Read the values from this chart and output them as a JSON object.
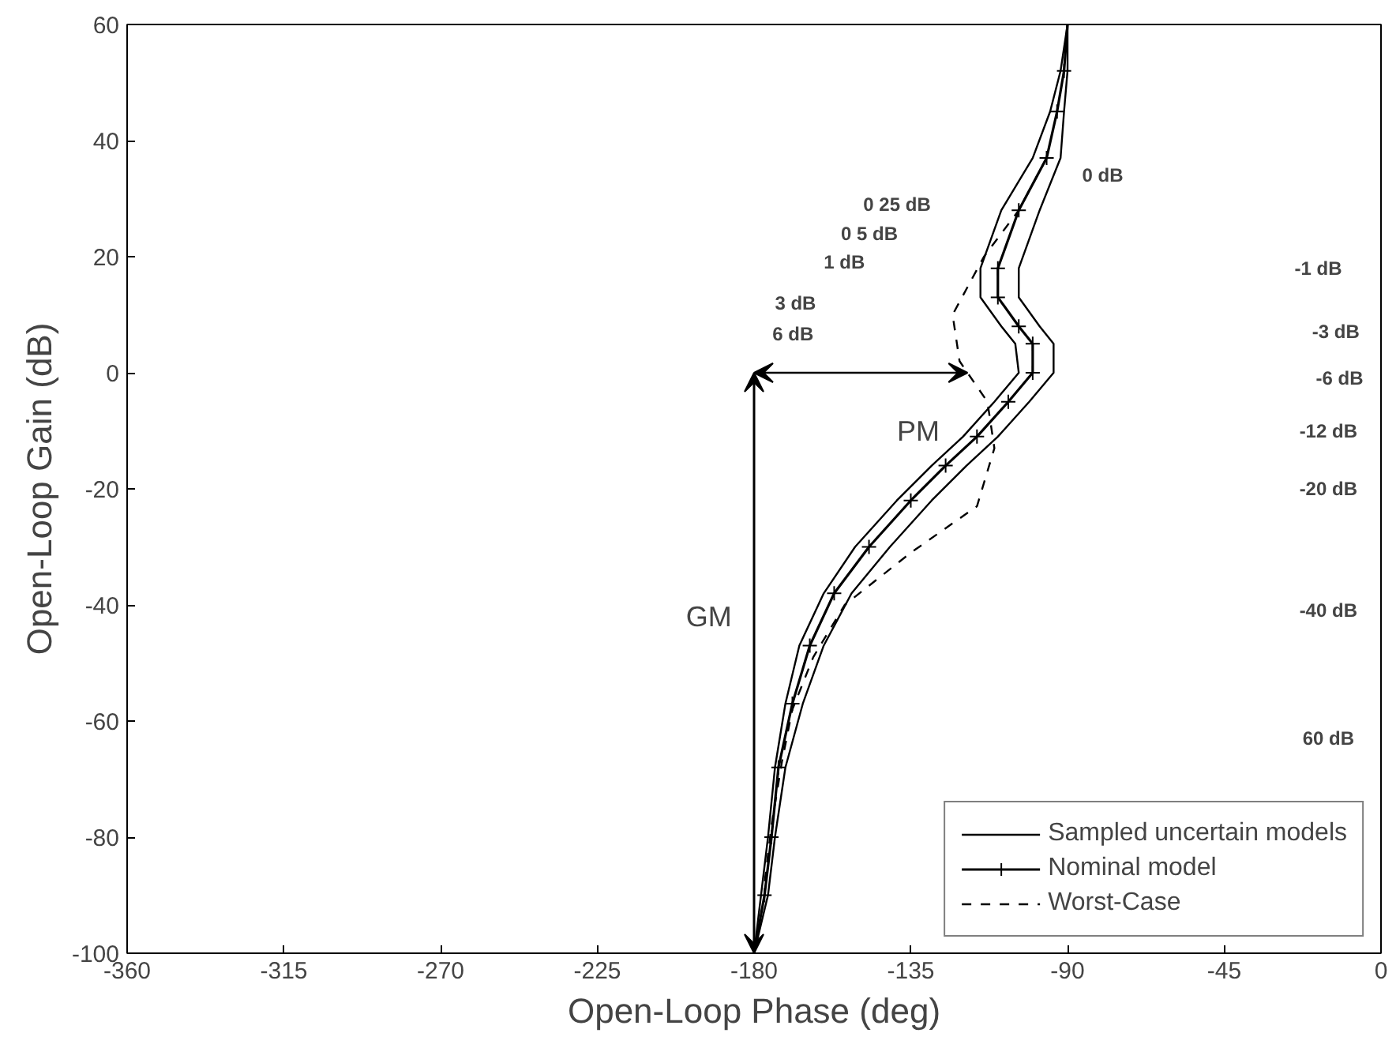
{
  "chart_data": {
    "type": "line",
    "xlabel": "Open-Loop Phase (deg)",
    "ylabel": "Open-Loop Gain (dB)",
    "xlim": [
      -360,
      0
    ],
    "ylim": [
      -100,
      60
    ],
    "xticks": [
      -360,
      -315,
      -270,
      -225,
      -180,
      -135,
      -90,
      -45,
      0
    ],
    "yticks": [
      -100,
      -80,
      -60,
      -40,
      -20,
      0,
      20,
      40,
      60
    ],
    "grid": false,
    "legend": "bottom right",
    "series": [
      {
        "name": "Sampled uncertain models",
        "color": "#000000",
        "line_style": "solid",
        "marker": "none",
        "x": [
          -90,
          -90,
          -91,
          -92,
          -98,
          -104,
          -104,
          -98,
          -94,
          -94,
          -101,
          -110,
          -119,
          -129,
          -141,
          -152,
          -160,
          -166,
          -171,
          -174,
          -176,
          -180
        ],
        "values": [
          60,
          52,
          45,
          37,
          28,
          18,
          13,
          8,
          5,
          0,
          -5,
          -11,
          -16,
          -22,
          -30,
          -38,
          -47,
          -57,
          -68,
          -80,
          -90,
          -100
        ]
      },
      {
        "color": "#000000",
        "line_style": "solid",
        "marker": "none",
        "x": [
          -90,
          -92,
          -95,
          -100,
          -109,
          -115,
          -115,
          -109,
          -105,
          -104,
          -111,
          -120,
          -129,
          -139,
          -151,
          -160,
          -167,
          -171,
          -174,
          -176,
          -178,
          -180
        ],
        "values": [
          60,
          52,
          45,
          37,
          28,
          18,
          13,
          8,
          5,
          0,
          -5,
          -11,
          -16,
          -22,
          -30,
          -38,
          -47,
          -57,
          -68,
          -80,
          -90,
          -100
        ]
      },
      {
        "name": "Nominal model",
        "color": "#000000",
        "line_style": "solid",
        "marker": "cross",
        "x": [
          -90,
          -91,
          -93,
          -96,
          -104,
          -110,
          -110,
          -104,
          -100,
          -100,
          -107,
          -116,
          -125,
          -135,
          -147,
          -157,
          -164,
          -169,
          -173,
          -175,
          -177,
          -180
        ],
        "values": [
          60,
          52,
          45,
          37,
          28,
          18,
          13,
          8,
          5,
          0,
          -5,
          -11,
          -16,
          -22,
          -30,
          -38,
          -47,
          -57,
          -68,
          -80,
          -90,
          -100
        ]
      },
      {
        "name": "Worst-Case",
        "color": "#000000",
        "line_style": "dashed",
        "marker": "none",
        "x": [
          -96,
          -104,
          -114,
          -123,
          -121,
          -113,
          -111,
          -116,
          -135,
          -154,
          -163,
          -169,
          -172,
          -175,
          -177
        ],
        "values": [
          37,
          28,
          20,
          10,
          2,
          -5,
          -13,
          -23,
          -31,
          -40,
          -49,
          -58,
          -67,
          -78,
          -88
        ]
      }
    ],
    "annotations": [
      "PM",
      "GM",
      "0 25 dB",
      "0 5 dB",
      "1 dB",
      "3 dB",
      "6 dB",
      "0 dB",
      "-1 dB",
      "-3 dB",
      "-6 dB",
      "-12 dB",
      "-20 dB",
      "-40 dB",
      "60 dB"
    ]
  }
}
